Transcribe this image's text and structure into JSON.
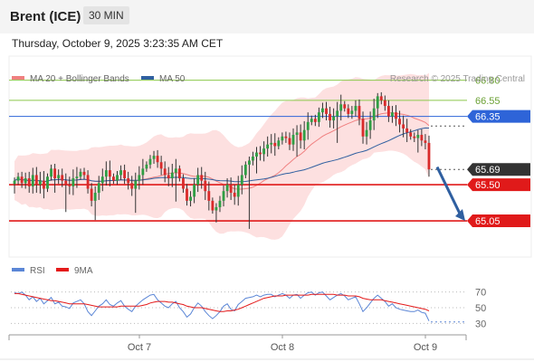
{
  "header": {
    "instrument": "Brent (ICE)",
    "timeframe": "30 MIN",
    "datetime": "Thursday, October 9, 2025 3:23:35 AM CET"
  },
  "legend": {
    "ma20": "MA 20 + Bollinger Bands",
    "ma50": "MA 50",
    "ma20_color": "#f08080",
    "ma50_color": "#3060a0",
    "credit": "Research © 2025 Trading Central"
  },
  "osc_legend": {
    "rsi": "RSI",
    "ma9": "9MA",
    "rsi_color": "#5b86d6",
    "ma9_color": "#e41a1a"
  },
  "chart_data": [
    {
      "type": "candlestick",
      "title": "Brent (ICE) 30 MIN",
      "y_ticks": [],
      "x_labels": [
        "Oct 7",
        "Oct 8",
        "Oct 9"
      ],
      "ylim": [
        64.6,
        67.1
      ],
      "levels": [
        {
          "value": 66.8,
          "label": "66.80",
          "kind": "resistance",
          "color": "#8cc84b"
        },
        {
          "value": 66.55,
          "label": "66.55",
          "kind": "resistance",
          "color": "#8cc84b"
        },
        {
          "value": 66.35,
          "label": "66.35",
          "kind": "pivot",
          "color": "#2e64d8"
        },
        {
          "value": 65.5,
          "label": "65.50",
          "kind": "support",
          "color": "#e01a1a"
        },
        {
          "value": 65.05,
          "label": "65.05",
          "kind": "support",
          "color": "#e01a1a"
        }
      ],
      "last_price": {
        "value": 65.69,
        "label": "65.69",
        "color": "#333333"
      },
      "projection": {
        "from": 65.72,
        "to": 65.05,
        "color": "#2f5fa0"
      },
      "closes": [
        65.55,
        65.6,
        65.52,
        65.58,
        65.48,
        65.62,
        65.5,
        65.55,
        65.45,
        65.6,
        65.7,
        65.58,
        65.62,
        65.55,
        65.5,
        65.48,
        65.58,
        65.6,
        65.66,
        65.62,
        65.45,
        65.3,
        65.4,
        65.52,
        65.6,
        65.68,
        65.6,
        65.55,
        65.62,
        65.68,
        65.58,
        65.52,
        65.45,
        65.55,
        65.62,
        65.7,
        65.75,
        65.82,
        65.86,
        65.78,
        65.7,
        65.62,
        65.58,
        65.65,
        65.7,
        65.58,
        65.45,
        65.3,
        65.35,
        65.5,
        65.62,
        65.55,
        65.42,
        65.3,
        65.18,
        65.22,
        65.3,
        65.42,
        65.5,
        65.4,
        65.35,
        65.5,
        65.62,
        65.75,
        65.8,
        65.85,
        65.9,
        65.88,
        65.95,
        66.0,
        66.02,
        65.98,
        66.05,
        66.1,
        66.08,
        66.0,
        66.12,
        66.15,
        66.05,
        66.18,
        66.28,
        66.32,
        66.28,
        66.4,
        66.45,
        66.38,
        66.3,
        66.35,
        66.42,
        66.5,
        66.45,
        66.38,
        66.42,
        66.48,
        66.32,
        66.1,
        66.18,
        66.3,
        66.45,
        66.6,
        66.55,
        66.48,
        66.35,
        66.4,
        66.32,
        66.25,
        66.2,
        66.15,
        66.1,
        66.08,
        66.12,
        66.05,
        66.02,
        65.69
      ],
      "rsi": {
        "ylim": [
          20,
          80
        ],
        "ticks": [
          70,
          50,
          30
        ],
        "rsi": [
          69,
          68,
          70,
          66,
          60,
          64,
          58,
          62,
          55,
          59,
          63,
          55,
          57,
          52,
          51,
          49,
          56,
          58,
          60,
          55,
          45,
          40,
          46,
          52,
          55,
          60,
          54,
          52,
          56,
          59,
          52,
          48,
          45,
          52,
          56,
          60,
          63,
          66,
          67,
          60,
          56,
          52,
          50,
          55,
          58,
          50,
          45,
          38,
          42,
          50,
          56,
          52,
          45,
          40,
          36,
          40,
          45,
          52,
          55,
          48,
          46,
          54,
          58,
          62,
          63,
          64,
          66,
          64,
          66,
          67,
          67,
          64,
          66,
          68,
          66,
          62,
          66,
          67,
          62,
          66,
          69,
          70,
          66,
          69,
          70,
          65,
          60,
          63,
          66,
          68,
          65,
          60,
          62,
          64,
          55,
          45,
          50,
          56,
          62,
          66,
          62,
          58,
          52,
          55,
          50,
          48,
          47,
          46,
          45,
          45,
          47,
          44,
          43,
          33
        ],
        "ma9": [
          68,
          68,
          67,
          66,
          65,
          64,
          63,
          62,
          61,
          60,
          59,
          59,
          58,
          57,
          56,
          55,
          55,
          55,
          55,
          55,
          54,
          53,
          52,
          51,
          51,
          51,
          51,
          51,
          51,
          52,
          52,
          52,
          52,
          52,
          52,
          53,
          54,
          56,
          57,
          58,
          58,
          58,
          57,
          57,
          56,
          55,
          54,
          52,
          51,
          50,
          50,
          50,
          49,
          48,
          47,
          46,
          45,
          45,
          46,
          46,
          47,
          48,
          50,
          52,
          54,
          56,
          58,
          60,
          62,
          63,
          64,
          65,
          65,
          65,
          66,
          66,
          66,
          66,
          66,
          66,
          66,
          67,
          67,
          67,
          67,
          67,
          67,
          67,
          66,
          66,
          66,
          65,
          65,
          65,
          64,
          62,
          61,
          60,
          60,
          60,
          60,
          59,
          58,
          57,
          56,
          55,
          54,
          53,
          52,
          51,
          50,
          49,
          48,
          46
        ]
      }
    }
  ]
}
